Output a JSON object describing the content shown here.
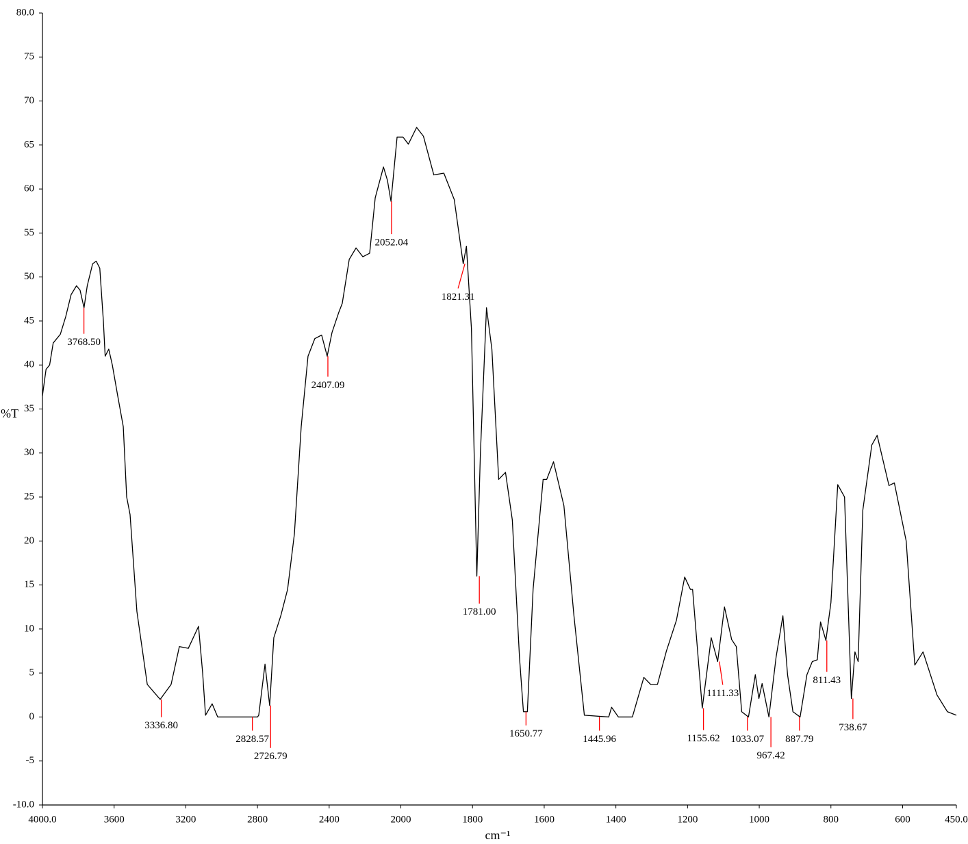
{
  "chart_data": {
    "type": "line",
    "xlabel": "cm⁻¹",
    "ylabel": "%T",
    "xlim": [
      4000,
      450
    ],
    "x_scale_split": 2000,
    "ylim": [
      -10,
      80
    ],
    "xticks": [
      {
        "value": 4000,
        "label": "4000.0"
      },
      3600,
      3200,
      2800,
      2400,
      2000,
      1800,
      1600,
      1400,
      1200,
      1000,
      800,
      600,
      {
        "value": 450,
        "label": "450.0"
      }
    ],
    "yticks": [
      {
        "value": -10,
        "label": "-10.0"
      },
      -5,
      0,
      5,
      10,
      15,
      20,
      25,
      30,
      35,
      40,
      45,
      50,
      55,
      60,
      65,
      70,
      75,
      {
        "value": 80,
        "label": "80.0"
      }
    ],
    "series": [
      {
        "color": "#000000",
        "x": [
          4000,
          3980,
          3960,
          3940,
          3920,
          3900,
          3870,
          3840,
          3810,
          3790,
          3768,
          3750,
          3720,
          3700,
          3680,
          3660,
          3650,
          3630,
          3610,
          3580,
          3549,
          3530,
          3511,
          3473,
          3415,
          3343,
          3282,
          3236,
          3186,
          3129,
          3106,
          3090,
          3053,
          3022,
          2800,
          2793,
          2758,
          2732,
          2709,
          2670,
          2632,
          2594,
          2556,
          2518,
          2480,
          2442,
          2411,
          2384,
          2346,
          2327,
          2288,
          2250,
          2212,
          2174,
          2143,
          2097,
          2075,
          2055,
          2021,
          1994,
          1979,
          1956,
          1937,
          1908,
          1880,
          1851,
          1826,
          1817,
          1803,
          1788,
          1778,
          1761,
          1746,
          1727,
          1708,
          1689,
          1669,
          1658,
          1647,
          1631,
          1603,
          1593,
          1574,
          1545,
          1517,
          1488,
          1420,
          1412,
          1393,
          1354,
          1322,
          1303,
          1284,
          1259,
          1231,
          1208,
          1192,
          1186,
          1173,
          1159,
          1134,
          1116,
          1097,
          1077,
          1064,
          1049,
          1030,
          1011,
          1001,
          992,
          973,
          953,
          934,
          921,
          906,
          886,
          867,
          852,
          838,
          829,
          814,
          800,
          781,
          762,
          743,
          733,
          724,
          711,
          686,
          671,
          638,
          623,
          590,
          566,
          543,
          504,
          475,
          450
        ],
        "values": [
          36.5,
          39.5,
          40,
          42.5,
          43,
          43.5,
          45.5,
          48,
          49,
          48.5,
          46.5,
          49,
          51.5,
          51.8,
          51,
          45,
          41,
          41.8,
          40,
          36.5,
          33,
          25,
          23,
          12,
          3.7,
          2,
          3.7,
          8,
          7.8,
          10.3,
          5,
          0.2,
          1.5,
          0,
          0,
          0.2,
          6,
          1.3,
          9,
          11.5,
          14.5,
          20.8,
          33,
          41,
          43,
          43.4,
          41,
          43.7,
          46,
          47,
          52,
          53.3,
          52.3,
          52.7,
          59,
          62.5,
          61,
          58.6,
          65.9,
          65.9,
          65.1,
          67,
          66,
          61.6,
          61.8,
          58.8,
          51.5,
          53.5,
          44.1,
          16,
          30,
          46.5,
          41.8,
          27,
          27.8,
          22.4,
          6.8,
          0.6,
          0.6,
          14.5,
          27,
          27,
          29,
          24,
          11.5,
          0.2,
          0,
          1.1,
          0,
          0,
          4.5,
          3.7,
          3.7,
          7.5,
          11,
          15.9,
          14.5,
          14.5,
          8,
          1,
          9,
          6.3,
          12.5,
          8.8,
          8,
          0.6,
          0,
          4.8,
          2.1,
          3.8,
          0,
          6.8,
          11.5,
          4.8,
          0.6,
          0,
          4.8,
          6.3,
          6.5,
          10.8,
          8.7,
          13,
          26.4,
          25,
          2.1,
          7.4,
          6.3,
          23.5,
          30.9,
          32,
          26.3,
          26.6,
          20,
          5.9,
          7.4,
          2.5,
          0.6,
          0.2
        ]
      }
    ],
    "peaks": {
      "color": "#ff0000",
      "x": [
        3768.5,
        3336.8,
        2828.57,
        2726.79,
        2407.09,
        2052.04,
        1821.31,
        1781,
        1650.77,
        1445.96,
        1155.62,
        1111.33,
        1033.07,
        967.42,
        887.79,
        811.43,
        738.67
      ],
      "x_labels": [
        "3768.50",
        "3336.80",
        "2828.57",
        "2726.79",
        "2407.09",
        "2052.04",
        "1821.31",
        "1781.00",
        "1650.77",
        "1445.96",
        "1155.62",
        "1111.33",
        "1033.07",
        "967.42",
        "887.79",
        "811.43",
        "738.67"
      ],
      "y": [
        46.5,
        2,
        0,
        1.3,
        41,
        58.6,
        51.5,
        16,
        0.6,
        0,
        1,
        6.3,
        0,
        0,
        0,
        8.7,
        2.1
      ]
    }
  }
}
